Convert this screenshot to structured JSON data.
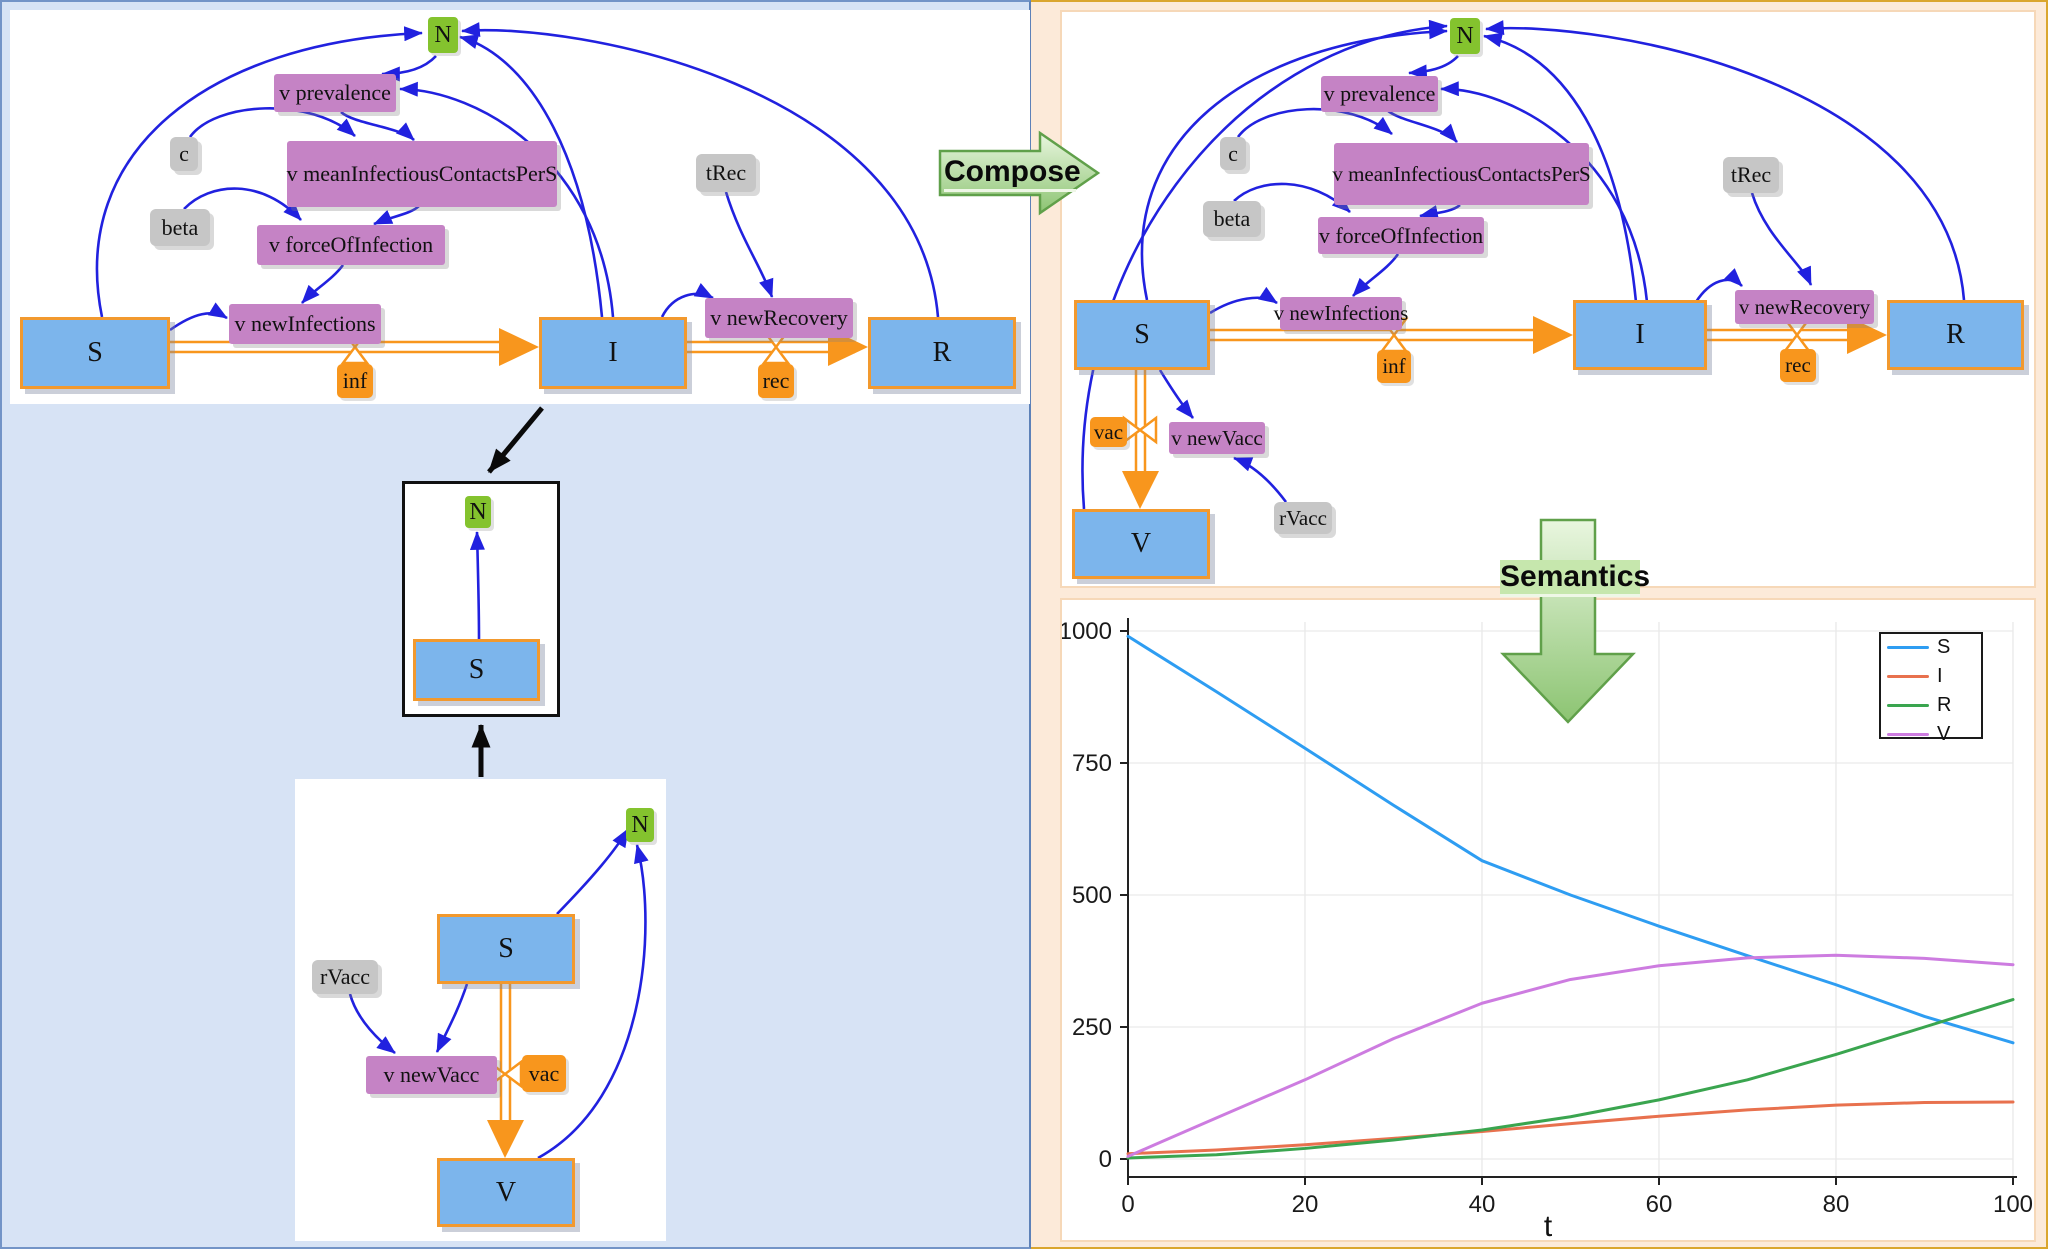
{
  "labels": {
    "compose": "Compose",
    "semantics": "Semantics"
  },
  "diagrams": {
    "sir": {
      "N": "N",
      "prevalence": "v prevalence",
      "c": "c",
      "contacts": "v meanInfectiousContactsPerS",
      "beta": "beta",
      "tRec": "tRec",
      "force": "v forceOfInfection",
      "newInfections": "v newInfections",
      "newRecovery": "v newRecovery",
      "S": "S",
      "I": "I",
      "R": "R",
      "inf": "inf",
      "rec": "rec",
      "links": [
        "S->N",
        "I->N",
        "R->N",
        "I->v prevalence",
        "N->v prevalence",
        "v prevalence->v meanInfectiousContactsPerS",
        "c->v meanInfectiousContactsPerS",
        "v meanInfectiousContactsPerS->v forceOfInfection",
        "beta->v forceOfInfection",
        "v forceOfInfection->v newInfections",
        "S->v newInfections",
        "tRec->v newRecovery",
        "I->v newRecovery",
        "S=inf=>I",
        "I=rec=>R"
      ]
    },
    "interface": {
      "N": "N",
      "S": "S",
      "links": [
        "S->N"
      ]
    },
    "vacc": {
      "N": "N",
      "S": "S",
      "V": "V",
      "rVacc": "rVacc",
      "newVacc": "v newVacc",
      "vac": "vac",
      "links": [
        "S->N",
        "V->N",
        "rVacc->v newVacc",
        "S->v newVacc",
        "S=vac=>V"
      ]
    },
    "composed": {
      "N": "N",
      "prevalence": "v prevalence",
      "c": "c",
      "contacts": "v meanInfectiousContactsPerS",
      "beta": "beta",
      "tRec": "tRec",
      "force": "v forceOfInfection",
      "newInfections": "v newInfections",
      "newRecovery": "v newRecovery",
      "S": "S",
      "I": "I",
      "R": "R",
      "V": "V",
      "inf": "inf",
      "rec": "rec",
      "vac": "vac",
      "newVacc": "v newVacc",
      "rVacc": "rVacc",
      "links": [
        "S->N",
        "V->N",
        "I->N",
        "R->N",
        "I->v prevalence",
        "N->v prevalence",
        "v prevalence->v meanInfectiousContactsPerS",
        "c->v meanInfectiousContactsPerS",
        "v meanInfectiousContactsPerS->v forceOfInfection",
        "beta->v forceOfInfection",
        "v forceOfInfection->v newInfections",
        "S->v newInfections",
        "tRec->v newRecovery",
        "I->v newRecovery",
        "S->v newVacc",
        "rVacc->v newVacc",
        "S=inf=>I",
        "I=rec=>R",
        "S=vac=>V"
      ]
    }
  },
  "chart_data": {
    "type": "line",
    "x": [
      0,
      10,
      20,
      30,
      40,
      50,
      60,
      70,
      80,
      90,
      100
    ],
    "series": [
      {
        "name": "S",
        "color": "#2e9df2",
        "values": [
          990,
          885,
          778,
          670,
          565,
          500,
          441,
          385,
          330,
          270,
          220
        ]
      },
      {
        "name": "I",
        "color": "#e8714e",
        "values": [
          10,
          17,
          27,
          39,
          52,
          67,
          81,
          93,
          102,
          107,
          108
        ]
      },
      {
        "name": "R",
        "color": "#3aa54f",
        "values": [
          2,
          8,
          20,
          36,
          55,
          80,
          112,
          150,
          198,
          250,
          302
        ]
      },
      {
        "name": "V",
        "color": "#cd7ce0",
        "values": [
          5,
          78,
          150,
          228,
          295,
          340,
          366,
          381,
          386,
          380,
          368
        ]
      }
    ],
    "title": "",
    "xlabel": "t",
    "ylabel": "",
    "xlim": [
      0,
      100
    ],
    "ylim": [
      0,
      1000
    ],
    "xticks": [
      0,
      20,
      40,
      60,
      80,
      100
    ],
    "yticks": [
      0,
      250,
      500,
      750,
      1000
    ],
    "grid": true,
    "legend_position": "top-right"
  },
  "colors": {
    "stock_fill": "#7cb5ec",
    "stock_border": "#f2992e",
    "variable": "#c583c5",
    "parameter": "#c6c6c6",
    "sum_total": "#84c32e",
    "flow_orange": "#f8961d",
    "link_blue": "#2121df",
    "left_background": "#d7e3f5",
    "right_background": "#fcead9",
    "left_border": "#7394c7",
    "right_border": "#daa62e",
    "green_arrow": "#8cc472"
  }
}
